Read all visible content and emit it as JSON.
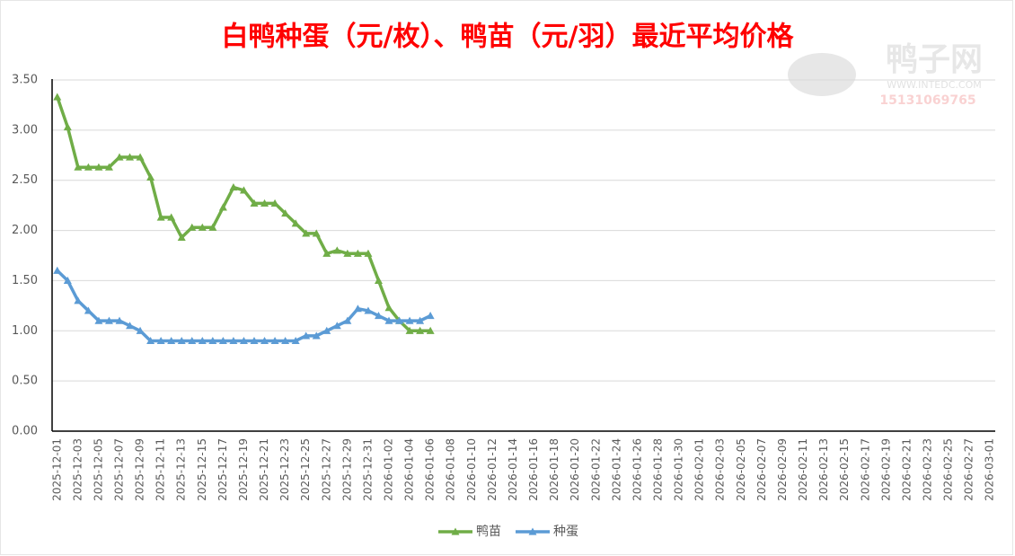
{
  "chart_data": {
    "type": "line",
    "title": "白鸭种蛋（元/枚）、鸭苗（元/羽）最近平均价格",
    "watermark": {
      "name": "鸭子网",
      "site": "WWW.INTEDC.COM",
      "phone": "15131069765"
    },
    "categories": [
      "2025-12-01",
      null,
      "2025-12-03",
      null,
      "2025-12-05",
      null,
      "2025-12-07",
      null,
      "2025-12-09",
      null,
      "2025-12-11",
      null,
      "2025-12-13",
      null,
      "2025-12-15",
      null,
      "2025-12-17",
      null,
      "2025-12-19",
      null,
      "2025-12-21",
      null,
      "2025-12-23",
      null,
      "2025-12-25",
      null,
      "2025-12-27",
      null,
      "2025-12-29",
      null,
      "2025-12-31",
      null,
      "2026-01-02",
      null,
      "2026-01-04",
      null,
      "2026-01-06",
      null,
      "2026-01-08",
      null,
      "2026-01-10",
      null,
      "2026-01-12",
      null,
      "2026-01-14",
      null,
      "2026-01-16",
      null,
      "2026-01-18",
      null,
      "2026-01-20",
      null,
      "2026-01-22",
      null,
      "2026-01-24",
      null,
      "2026-01-26",
      null,
      "2026-01-28",
      null,
      "2026-01-30",
      null,
      "2026-02-01",
      null,
      "2026-02-03",
      null,
      "2026-02-05",
      null,
      "2026-02-07",
      null,
      "2026-02-09",
      null,
      "2026-02-11",
      null,
      "2026-02-13",
      null,
      "2026-02-15",
      null,
      "2026-02-17",
      null,
      "2026-02-19",
      null,
      "2026-02-21",
      null,
      "2026-02-23",
      null,
      "2026-02-25",
      null,
      "2026-02-27",
      null,
      "2026-03-01"
    ],
    "series": [
      {
        "name": "鸭苗",
        "color": "#70ad47",
        "values": [
          3.33,
          3.03,
          2.63,
          2.63,
          2.63,
          2.63,
          2.73,
          2.73,
          2.73,
          2.53,
          2.13,
          2.13,
          1.93,
          2.03,
          2.03,
          2.03,
          2.23,
          2.43,
          2.4,
          2.27,
          2.27,
          2.27,
          2.17,
          2.07,
          1.97,
          1.97,
          1.77,
          1.8,
          1.77,
          1.77,
          1.77,
          1.5,
          1.23,
          1.1,
          1.0,
          1.0,
          1.0,
          null,
          null,
          null,
          null,
          null,
          null,
          null,
          null,
          null,
          null,
          null,
          null,
          null,
          null,
          null,
          null,
          null,
          null,
          null,
          null,
          null,
          null,
          null,
          null,
          null,
          null,
          null,
          null,
          null,
          null,
          null,
          null,
          null,
          null,
          null,
          null,
          null,
          null,
          null,
          null,
          null,
          null,
          null,
          null,
          null,
          null,
          null,
          null,
          null,
          null,
          null,
          null,
          null,
          null
        ]
      },
      {
        "name": "种蛋",
        "color": "#5b9bd5",
        "values": [
          1.6,
          1.5,
          1.3,
          1.2,
          1.1,
          1.1,
          1.1,
          1.05,
          1.0,
          0.9,
          0.9,
          0.9,
          0.9,
          0.9,
          0.9,
          0.9,
          0.9,
          0.9,
          0.9,
          0.9,
          0.9,
          0.9,
          0.9,
          0.9,
          0.95,
          0.95,
          1.0,
          1.05,
          1.1,
          1.22,
          1.2,
          1.15,
          1.1,
          1.1,
          1.1,
          1.1,
          1.15,
          null,
          null,
          null,
          null,
          null,
          null,
          null,
          null,
          null,
          null,
          null,
          null,
          null,
          null,
          null,
          null,
          null,
          null,
          null,
          null,
          null,
          null,
          null,
          null,
          null,
          null,
          null,
          null,
          null,
          null,
          null,
          null,
          null,
          null,
          null,
          null,
          null,
          null,
          null,
          null,
          null,
          null,
          null,
          null,
          null,
          null,
          null,
          null,
          null,
          null,
          null,
          null,
          null,
          null
        ]
      }
    ],
    "ylim": [
      0,
      3.5
    ],
    "yticks": [
      {
        "value": 0,
        "label": "0.00"
      },
      {
        "value": 0.5,
        "label": "0.50"
      },
      {
        "value": 1,
        "label": "1.00"
      },
      {
        "value": 1.5,
        "label": "1.50"
      },
      {
        "value": 2,
        "label": "2.00"
      },
      {
        "value": 2.5,
        "label": "2.50"
      },
      {
        "value": 3,
        "label": "3.00"
      },
      {
        "value": 3.5,
        "label": "3.50"
      }
    ],
    "grid": true,
    "legend": "bottom"
  }
}
